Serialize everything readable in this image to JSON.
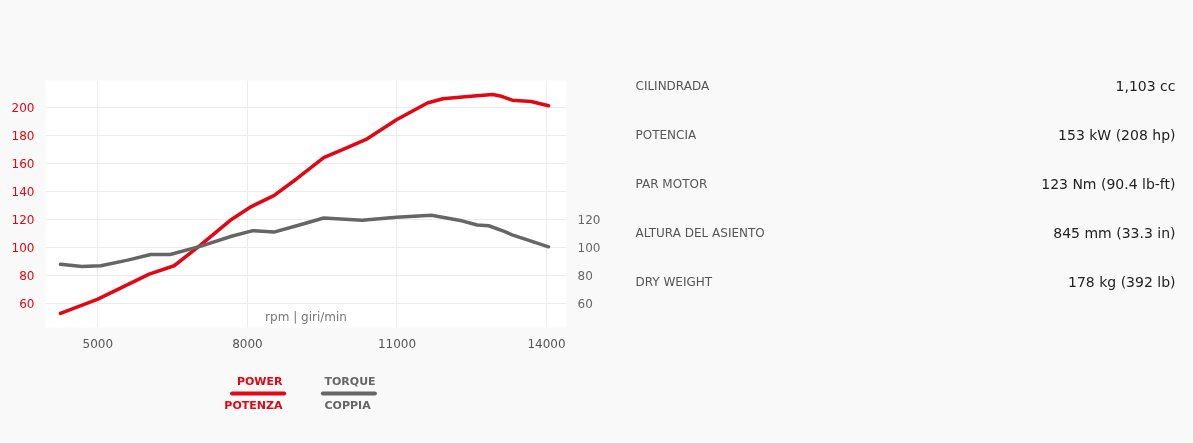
{
  "chart_data": [
    {
      "type": "line",
      "xlabel": "rpm | giri/min",
      "xlim": [
        3950,
        14400
      ],
      "xticks": [
        5000,
        8000,
        11000,
        14000
      ],
      "ylim": [
        43,
        219
      ],
      "yticks": [
        60,
        80,
        100,
        120,
        140,
        160,
        180,
        200
      ],
      "y2lim": [
        43,
        219
      ],
      "y2ticks": [
        60,
        80,
        100,
        120
      ],
      "grid": true,
      "legend": "bottom",
      "line_style": "solid",
      "series": [
        {
          "name": "POWER\nPOTENZA",
          "color": "#e30613",
          "x": [
            4250,
            4990,
            6030,
            6530,
            7070,
            7680,
            8070,
            8530,
            8990,
            9530,
            9990,
            10380,
            10990,
            11610,
            11920,
            12540,
            12920,
            13070,
            13310,
            13690,
            14040
          ],
          "values": [
            53,
            63,
            81,
            87,
            102,
            120,
            129,
            137,
            149,
            164,
            171,
            177,
            191,
            203,
            206,
            208,
            209,
            208,
            205,
            204,
            201
          ]
        },
        {
          "name": "TORQUE\nCOPPIA",
          "color": "#666666",
          "axis": "y2",
          "x": [
            4250,
            4680,
            5060,
            5600,
            6060,
            6450,
            7070,
            7680,
            8110,
            8530,
            8990,
            9530,
            10300,
            10990,
            11690,
            12300,
            12610,
            12840,
            13150,
            13310,
            14040
          ],
          "values": [
            88,
            86.5,
            87,
            91,
            95,
            95,
            101,
            108,
            112,
            111,
            115.5,
            121,
            119.5,
            121.5,
            123,
            119,
            116,
            115.5,
            111.5,
            109,
            100.5
          ]
        }
      ]
    },
    {
      "type": "other",
      "annotations": [
        "CILINDRADA",
        "1,103 cc",
        "POTENCIA",
        "153 kW (208 hp)",
        "PAR MOTOR",
        "123 Nm (90.4 lb-ft)",
        "ALTURA DEL ASIENTO",
        "845 mm (33.3 in)",
        "DRY WEIGHT",
        "178 kg (392 lb)"
      ]
    }
  ]
}
